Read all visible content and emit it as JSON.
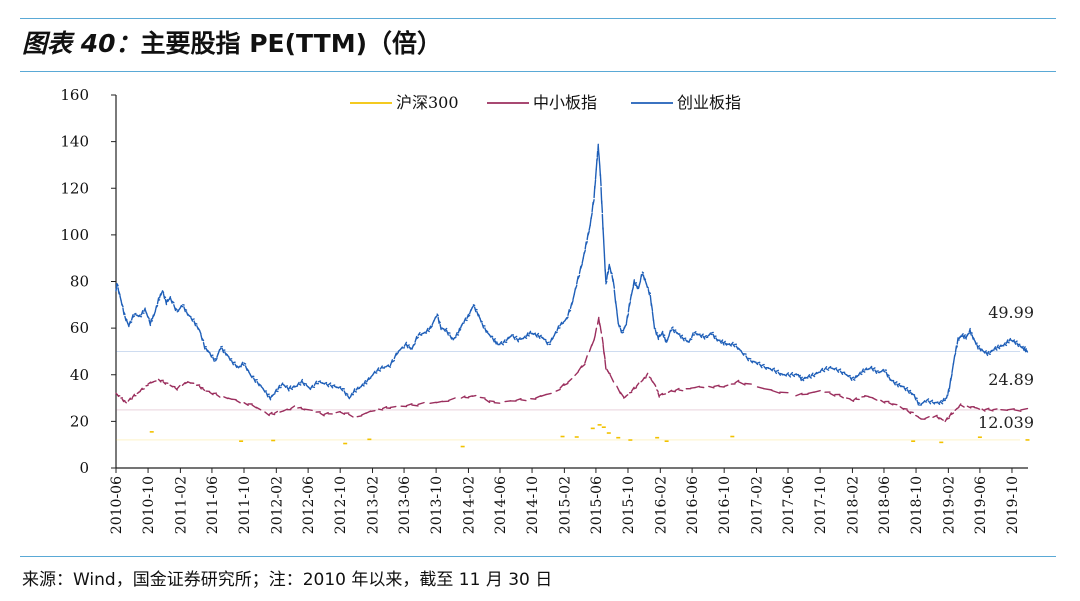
{
  "header": {
    "figure_label": "图表 40：",
    "title": "主要股指 PE(TTM)（倍）"
  },
  "source": "来源：Wind，国金证券研究所；注：2010 年以来，截至 11 月 30 日",
  "chart_data": {
    "type": "line",
    "title": "主要股指 PE(TTM)（倍）",
    "xlabel": "",
    "ylabel": "",
    "ylim": [
      0,
      160
    ],
    "yticks": [
      "0",
      "20",
      "40",
      "60",
      "80",
      "100",
      "120",
      "140",
      "160"
    ],
    "x_ticks": [
      "2010-06",
      "2010-10",
      "2011-02",
      "2011-06",
      "2011-10",
      "2012-02",
      "2012-06",
      "2012-10",
      "2013-02",
      "2013-06",
      "2013-10",
      "2014-02",
      "2014-06",
      "2014-10",
      "2015-02",
      "2015-06",
      "2015-10",
      "2016-02",
      "2016-06",
      "2016-10",
      "2017-02",
      "2017-06",
      "2017-10",
      "2018-02",
      "2018-06",
      "2018-10",
      "2019-02",
      "2019-06",
      "2019-10"
    ],
    "x_range": [
      "2010-06-01",
      "2019-12-01"
    ],
    "legend": {
      "position": "top-center"
    },
    "grid": false,
    "series": [
      {
        "name": "沪深300",
        "color": "#f2c200",
        "style": "sparse",
        "points": [
          [
            "2010-10-15",
            15.5
          ],
          [
            "2011-09-20",
            11.5
          ],
          [
            "2012-01-20",
            11.8
          ],
          [
            "2012-10-20",
            10.5
          ],
          [
            "2013-01-20",
            12.3
          ],
          [
            "2014-01-10",
            9.2
          ],
          [
            "2015-01-25",
            13.5
          ],
          [
            "2015-03-20",
            13.3
          ],
          [
            "2015-05-20",
            17.0
          ],
          [
            "2015-06-15",
            18.5
          ],
          [
            "2015-07-01",
            17.5
          ],
          [
            "2015-07-20",
            15.0
          ],
          [
            "2015-08-25",
            13.0
          ],
          [
            "2015-10-10",
            12.0
          ],
          [
            "2016-01-20",
            13.0
          ],
          [
            "2016-02-25",
            11.5
          ],
          [
            "2016-11-01",
            13.5
          ],
          [
            "2018-09-20",
            11.5
          ],
          [
            "2019-01-05",
            11.0
          ],
          [
            "2019-06-01",
            13.2
          ],
          [
            "2019-11-29",
            12.039
          ]
        ]
      },
      {
        "name": "中小板指",
        "color": "#9b2f5e",
        "style": "broken",
        "points": [
          [
            "2010-06-01",
            32
          ],
          [
            "2010-06-20",
            30
          ],
          [
            "2010-07-10",
            28
          ],
          [
            "2010-08-10",
            31
          ],
          [
            "2010-09-01",
            33
          ],
          [
            "2010-10-01",
            36
          ],
          [
            "2010-11-10",
            38
          ],
          [
            "2010-12-15",
            36
          ],
          [
            "2011-01-20",
            34
          ],
          [
            "2011-03-01",
            37
          ],
          [
            "2011-04-15",
            35
          ],
          [
            "2011-05-10",
            33
          ],
          [
            "2011-07-01",
            31
          ],
          [
            "2011-09-01",
            29
          ],
          [
            "2011-11-01",
            27
          ],
          [
            "2012-01-05",
            23
          ],
          [
            "2012-02-15",
            24
          ],
          [
            "2012-04-10",
            26
          ],
          [
            "2012-06-01",
            25
          ],
          [
            "2012-08-01",
            23
          ],
          [
            "2012-10-01",
            24
          ],
          [
            "2012-12-05",
            22
          ],
          [
            "2013-02-10",
            25
          ],
          [
            "2013-04-10",
            26
          ],
          [
            "2013-07-01",
            27
          ],
          [
            "2013-10-01",
            28
          ],
          [
            "2014-01-05",
            30
          ],
          [
            "2014-03-01",
            31
          ],
          [
            "2014-05-10",
            28
          ],
          [
            "2014-08-01",
            29
          ],
          [
            "2014-10-15",
            30
          ],
          [
            "2015-01-01",
            33
          ],
          [
            "2015-03-01",
            38
          ],
          [
            "2015-04-20",
            45
          ],
          [
            "2015-05-25",
            55
          ],
          [
            "2015-06-12",
            64
          ],
          [
            "2015-06-25",
            56
          ],
          [
            "2015-07-09",
            43
          ],
          [
            "2015-07-25",
            40
          ],
          [
            "2015-09-15",
            30
          ],
          [
            "2015-10-15",
            33
          ],
          [
            "2015-11-20",
            37
          ],
          [
            "2015-12-15",
            40
          ],
          [
            "2016-01-10",
            36
          ],
          [
            "2016-01-28",
            31
          ],
          [
            "2016-03-15",
            33
          ],
          [
            "2016-05-10",
            34
          ],
          [
            "2016-07-15",
            35
          ],
          [
            "2016-10-01",
            35
          ],
          [
            "2016-11-25",
            37
          ],
          [
            "2017-03-01",
            34
          ],
          [
            "2017-07-01",
            31
          ],
          [
            "2017-10-01",
            33
          ],
          [
            "2017-12-15",
            31
          ],
          [
            "2018-02-05",
            29
          ],
          [
            "2018-03-20",
            31
          ],
          [
            "2018-05-20",
            29
          ],
          [
            "2018-07-20",
            27
          ],
          [
            "2018-09-10",
            24
          ],
          [
            "2018-10-20",
            21
          ],
          [
            "2018-12-20",
            22
          ],
          [
            "2019-01-20",
            20
          ],
          [
            "2019-02-20",
            24
          ],
          [
            "2019-03-20",
            27
          ],
          [
            "2019-05-10",
            26
          ],
          [
            "2019-06-20",
            25
          ],
          [
            "2019-08-20",
            25
          ],
          [
            "2019-11-29",
            24.89
          ]
        ]
      },
      {
        "name": "创业板指",
        "color": "#1f5fb8",
        "style": "broken",
        "points": [
          [
            "2010-06-01",
            76
          ],
          [
            "2010-06-05",
            79
          ],
          [
            "2010-06-20",
            72
          ],
          [
            "2010-07-05",
            65
          ],
          [
            "2010-07-20",
            61
          ],
          [
            "2010-08-10",
            66
          ],
          [
            "2010-09-01",
            65
          ],
          [
            "2010-09-20",
            68
          ],
          [
            "2010-10-10",
            62
          ],
          [
            "2010-10-25",
            66
          ],
          [
            "2010-11-10",
            72
          ],
          [
            "2010-11-25",
            76
          ],
          [
            "2010-12-10",
            71
          ],
          [
            "2010-12-25",
            73
          ],
          [
            "2011-01-20",
            67
          ],
          [
            "2011-02-10",
            70
          ],
          [
            "2011-03-01",
            66
          ],
          [
            "2011-03-25",
            63
          ],
          [
            "2011-04-15",
            59
          ],
          [
            "2011-05-05",
            52
          ],
          [
            "2011-05-25",
            49
          ],
          [
            "2011-06-15",
            46
          ],
          [
            "2011-07-05",
            52
          ],
          [
            "2011-07-25",
            49
          ],
          [
            "2011-08-15",
            46
          ],
          [
            "2011-09-10",
            43
          ],
          [
            "2011-10-01",
            45
          ],
          [
            "2011-10-25",
            40
          ],
          [
            "2011-11-20",
            37
          ],
          [
            "2011-12-20",
            33
          ],
          [
            "2012-01-10",
            30
          ],
          [
            "2012-02-01",
            33
          ],
          [
            "2012-02-25",
            36
          ],
          [
            "2012-03-20",
            34
          ],
          [
            "2012-04-15",
            35
          ],
          [
            "2012-05-10",
            37
          ],
          [
            "2012-06-10",
            34
          ],
          [
            "2012-07-10",
            37
          ],
          [
            "2012-08-10",
            36
          ],
          [
            "2012-09-10",
            35
          ],
          [
            "2012-10-10",
            34
          ],
          [
            "2012-11-05",
            30
          ],
          [
            "2012-11-25",
            33
          ],
          [
            "2012-12-20",
            35
          ],
          [
            "2013-01-10",
            37
          ],
          [
            "2013-02-10",
            41
          ],
          [
            "2013-03-10",
            43
          ],
          [
            "2013-04-10",
            44
          ],
          [
            "2013-05-10",
            50
          ],
          [
            "2013-06-10",
            53
          ],
          [
            "2013-07-01",
            51
          ],
          [
            "2013-07-25",
            57
          ],
          [
            "2013-08-20",
            58
          ],
          [
            "2013-09-10",
            60
          ],
          [
            "2013-10-05",
            66
          ],
          [
            "2013-10-20",
            60
          ],
          [
            "2013-11-10",
            59
          ],
          [
            "2013-12-05",
            55
          ],
          [
            "2013-12-25",
            58
          ],
          [
            "2014-01-10",
            62
          ],
          [
            "2014-02-01",
            65
          ],
          [
            "2014-02-20",
            70
          ],
          [
            "2014-03-10",
            66
          ],
          [
            "2014-03-25",
            62
          ],
          [
            "2014-04-15",
            58
          ],
          [
            "2014-05-10",
            55
          ],
          [
            "2014-05-25",
            53
          ],
          [
            "2014-06-20",
            54
          ],
          [
            "2014-07-15",
            57
          ],
          [
            "2014-08-10",
            55
          ],
          [
            "2014-09-05",
            56
          ],
          [
            "2014-09-25",
            58
          ],
          [
            "2014-10-20",
            57
          ],
          [
            "2014-11-10",
            56
          ],
          [
            "2014-12-05",
            53
          ],
          [
            "2014-12-25",
            57
          ],
          [
            "2015-01-15",
            61
          ],
          [
            "2015-02-10",
            64
          ],
          [
            "2015-03-01",
            70
          ],
          [
            "2015-03-20",
            79
          ],
          [
            "2015-04-10",
            88
          ],
          [
            "2015-04-25",
            96
          ],
          [
            "2015-05-10",
            104
          ],
          [
            "2015-05-25",
            116
          ],
          [
            "2015-06-05",
            132
          ],
          [
            "2015-06-10",
            138
          ],
          [
            "2015-06-18",
            126
          ],
          [
            "2015-06-28",
            103
          ],
          [
            "2015-07-09",
            79
          ],
          [
            "2015-07-22",
            87
          ],
          [
            "2015-08-05",
            81
          ],
          [
            "2015-08-25",
            62
          ],
          [
            "2015-09-10",
            58
          ],
          [
            "2015-09-25",
            62
          ],
          [
            "2015-10-10",
            72
          ],
          [
            "2015-10-25",
            80
          ],
          [
            "2015-11-10",
            77
          ],
          [
            "2015-11-25",
            84
          ],
          [
            "2015-12-10",
            79
          ],
          [
            "2015-12-25",
            74
          ],
          [
            "2016-01-10",
            60
          ],
          [
            "2016-01-25",
            56
          ],
          [
            "2016-02-10",
            58
          ],
          [
            "2016-02-25",
            54
          ],
          [
            "2016-03-15",
            60
          ],
          [
            "2016-04-05",
            58
          ],
          [
            "2016-04-25",
            56
          ],
          [
            "2016-05-20",
            54
          ],
          [
            "2016-06-10",
            58
          ],
          [
            "2016-07-01",
            57
          ],
          [
            "2016-07-25",
            56
          ],
          [
            "2016-08-15",
            58
          ],
          [
            "2016-09-05",
            55
          ],
          [
            "2016-09-25",
            54
          ],
          [
            "2016-10-15",
            53
          ],
          [
            "2016-11-10",
            53
          ],
          [
            "2016-12-05",
            50
          ],
          [
            "2017-01-10",
            46
          ],
          [
            "2017-02-05",
            45
          ],
          [
            "2017-03-10",
            43
          ],
          [
            "2017-04-10",
            42
          ],
          [
            "2017-05-10",
            40
          ],
          [
            "2017-06-10",
            40
          ],
          [
            "2017-07-10",
            40
          ],
          [
            "2017-07-25",
            38
          ],
          [
            "2017-08-15",
            39
          ],
          [
            "2017-09-10",
            40
          ],
          [
            "2017-10-10",
            42
          ],
          [
            "2017-11-10",
            43
          ],
          [
            "2017-12-10",
            42
          ],
          [
            "2018-01-10",
            40
          ],
          [
            "2018-02-05",
            38
          ],
          [
            "2018-02-25",
            40
          ],
          [
            "2018-03-20",
            42
          ],
          [
            "2018-04-15",
            43
          ],
          [
            "2018-05-10",
            41
          ],
          [
            "2018-06-05",
            42
          ],
          [
            "2018-06-25",
            38
          ],
          [
            "2018-07-20",
            36
          ],
          [
            "2018-08-10",
            35
          ],
          [
            "2018-09-05",
            33
          ],
          [
            "2018-09-25",
            31
          ],
          [
            "2018-10-15",
            27
          ],
          [
            "2018-11-10",
            29
          ],
          [
            "2018-12-10",
            28
          ],
          [
            "2019-01-05",
            28
          ],
          [
            "2019-01-25",
            30
          ],
          [
            "2019-02-05",
            34
          ],
          [
            "2019-02-25",
            48
          ],
          [
            "2019-03-10",
            55
          ],
          [
            "2019-03-25",
            57
          ],
          [
            "2019-04-10",
            56
          ],
          [
            "2019-04-25",
            59
          ],
          [
            "2019-05-10",
            55
          ],
          [
            "2019-05-25",
            52
          ],
          [
            "2019-06-15",
            50
          ],
          [
            "2019-07-05",
            49
          ],
          [
            "2019-07-25",
            51
          ],
          [
            "2019-08-15",
            52
          ],
          [
            "2019-09-05",
            53
          ],
          [
            "2019-09-25",
            55
          ],
          [
            "2019-10-15",
            54
          ],
          [
            "2019-11-05",
            52
          ],
          [
            "2019-11-20",
            51
          ],
          [
            "2019-11-29",
            49.99
          ]
        ]
      }
    ],
    "reference_lines": [
      {
        "series": "创业板指",
        "value": 49.99,
        "label": "49.99"
      },
      {
        "series": "中小板指",
        "value": 24.89,
        "label": "24.89"
      },
      {
        "series": "沪深300",
        "value": 12.039,
        "label": "12.039"
      }
    ]
  }
}
